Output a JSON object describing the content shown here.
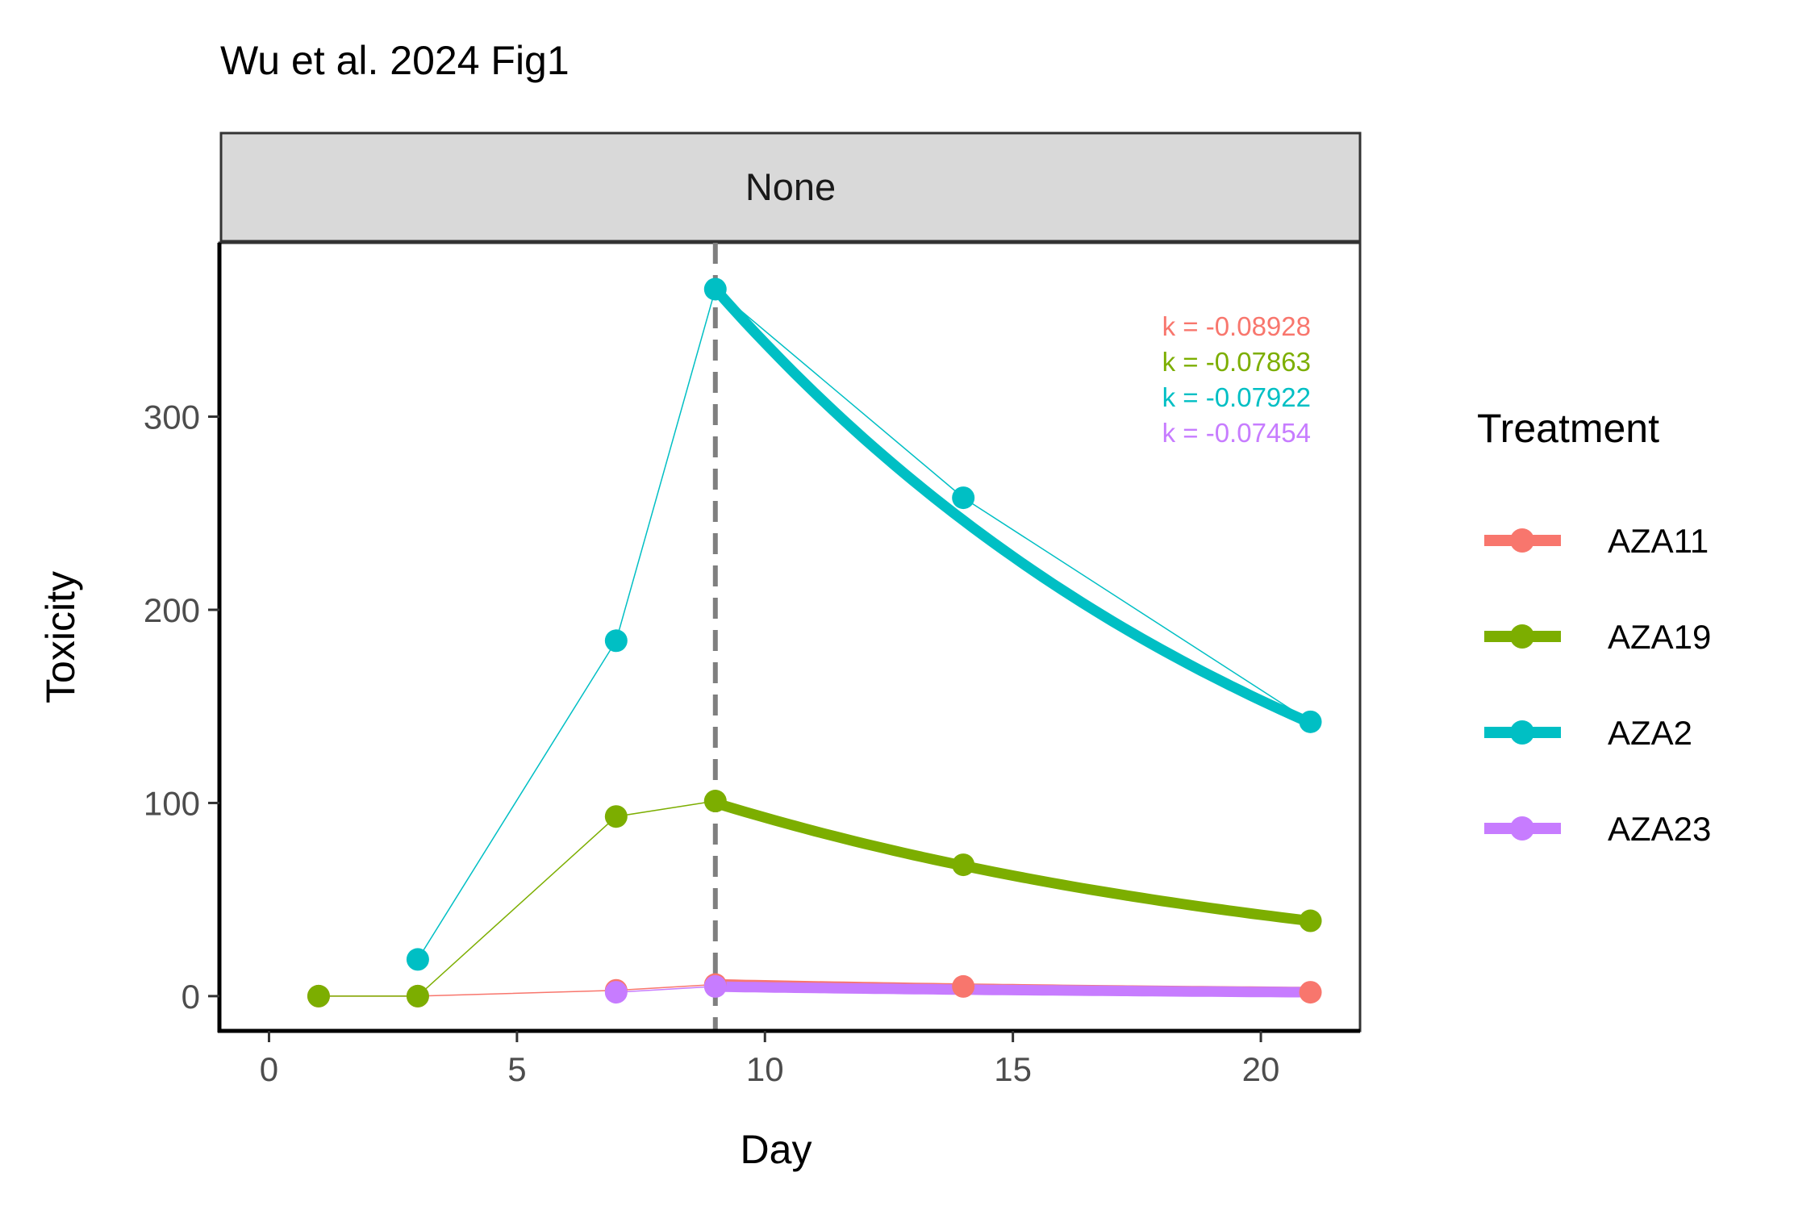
{
  "chart_data": {
    "type": "line",
    "title": "Wu et al. 2024 Fig1",
    "facet_label": "None",
    "xlabel": "Day",
    "ylabel": "Toxicity",
    "xlim": [
      -1,
      22
    ],
    "ylim": [
      -18,
      390
    ],
    "x_ticks": [
      0,
      5,
      10,
      15,
      20
    ],
    "y_ticks": [
      0,
      100,
      200,
      300
    ],
    "grid": false,
    "legend": {
      "title": "Treatment",
      "position": "right"
    },
    "vline": {
      "x": 9,
      "style": "dashed",
      "color": "#7f7f7f"
    },
    "series": [
      {
        "name": "AZA11",
        "color": "#F8766D",
        "x": [
          1,
          3,
          7,
          9,
          14,
          21
        ],
        "y": [
          0,
          0,
          3,
          6,
          5,
          2
        ],
        "fit_k": -0.08928,
        "fit_y0": 6.1
      },
      {
        "name": "AZA19",
        "color": "#7CAE00",
        "x": [
          1,
          3,
          7,
          9,
          14,
          21
        ],
        "y": [
          0,
          0,
          93,
          101,
          68,
          39
        ],
        "fit_k": -0.07863,
        "fit_y0": 100
      },
      {
        "name": "AZA2",
        "color": "#00BFC4",
        "x": [
          3,
          7,
          9,
          14,
          21
        ],
        "y": [
          19,
          184,
          366,
          258,
          142
        ],
        "fit_k": -0.07922,
        "fit_y0": 366
      },
      {
        "name": "AZA23",
        "color": "#C77CFF",
        "x": [
          7,
          9
        ],
        "y": [
          2,
          5
        ],
        "fit_k": -0.07454,
        "fit_y0": 4.9
      }
    ],
    "annotations": [
      {
        "text": "k = -0.08928",
        "color": "#F8766D"
      },
      {
        "text": "k = -0.07863",
        "color": "#7CAE00"
      },
      {
        "text": "k = -0.07922",
        "color": "#00BFC4"
      },
      {
        "text": "k = -0.07454",
        "color": "#C77CFF"
      }
    ]
  }
}
